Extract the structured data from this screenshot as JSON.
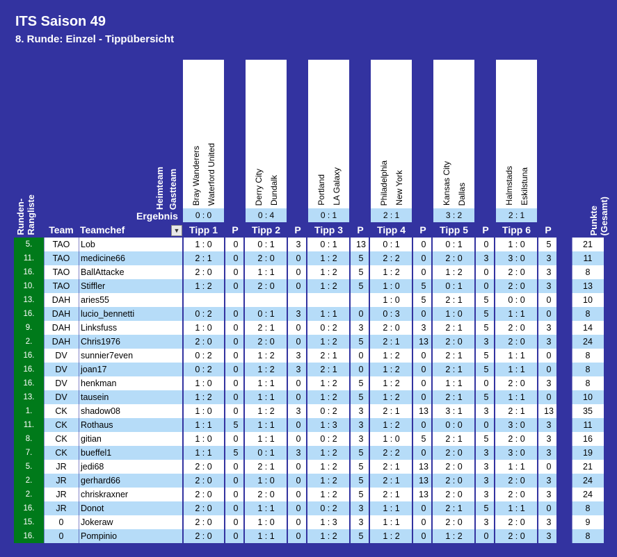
{
  "title": "ITS Saison 49",
  "subtitle": "8. Runde: Einzel - Tippübersicht",
  "labels": {
    "heimteam": "Heimteam",
    "gastteam": "Gastteam",
    "ergebnis": "Ergebnis",
    "rangliste": "Runden-\nRangliste",
    "team": "Team",
    "teamchef": "Teamchef",
    "p": "P",
    "punkte": "Punkte\n(Gesamt)",
    "filter_icon": "▼"
  },
  "matches": [
    {
      "home": "Bray Wanderers",
      "away": "Waterford United",
      "result": "0 : 0",
      "tipp_label": "Tipp 1"
    },
    {
      "home": "Derry City",
      "away": "Dundalk",
      "result": "0 : 4",
      "tipp_label": "Tipp 2"
    },
    {
      "home": "Portland",
      "away": "LA Galaxy",
      "result": "0 : 1",
      "tipp_label": "Tipp 3"
    },
    {
      "home": "Philadelphia",
      "away": "New York",
      "result": "2 : 1",
      "tipp_label": "Tipp 4"
    },
    {
      "home": "Kansas City",
      "away": "Dallas",
      "result": "3 : 2",
      "tipp_label": "Tipp 5"
    },
    {
      "home": "Halmstads",
      "away": "Eskilstuna",
      "result": "2 : 1",
      "tipp_label": "Tipp 6"
    }
  ],
  "colors": {
    "background": "#3333A0",
    "row_white": "#FFFFFF",
    "row_blue": "#B6DCF8",
    "rank_green": "#007A1A",
    "result_blue": "#B6DCF8"
  },
  "rows": [
    {
      "rank": "5.",
      "team": "TAO",
      "chef": "Lob",
      "tipps": [
        [
          "1 : 0",
          "0"
        ],
        [
          "0 : 1",
          "3"
        ],
        [
          "0 : 1",
          "13"
        ],
        [
          "0 : 1",
          "0"
        ],
        [
          "0 : 1",
          "0"
        ],
        [
          "1 : 0",
          "5"
        ]
      ],
      "total": "21"
    },
    {
      "rank": "11.",
      "team": "TAO",
      "chef": "medicine66",
      "tipps": [
        [
          "2 : 1",
          "0"
        ],
        [
          "2 : 0",
          "0"
        ],
        [
          "1 : 2",
          "5"
        ],
        [
          "2 : 2",
          "0"
        ],
        [
          "2 : 0",
          "3"
        ],
        [
          "3 : 0",
          "3"
        ]
      ],
      "total": "11"
    },
    {
      "rank": "16.",
      "team": "TAO",
      "chef": "BallAttacke",
      "tipps": [
        [
          "2 : 0",
          "0"
        ],
        [
          "1 : 1",
          "0"
        ],
        [
          "1 : 2",
          "5"
        ],
        [
          "1 : 2",
          "0"
        ],
        [
          "1 : 2",
          "0"
        ],
        [
          "2 : 0",
          "3"
        ]
      ],
      "total": "8"
    },
    {
      "rank": "10.",
      "team": "TAO",
      "chef": "Stiffler",
      "tipps": [
        [
          "1 : 2",
          "0"
        ],
        [
          "2 : 0",
          "0"
        ],
        [
          "1 : 2",
          "5"
        ],
        [
          "1 : 0",
          "5"
        ],
        [
          "0 : 1",
          "0"
        ],
        [
          "2 : 0",
          "3"
        ]
      ],
      "total": "13"
    },
    {
      "rank": "13.",
      "team": "DAH",
      "chef": "aries55",
      "tipps": [
        [
          "",
          ""
        ],
        [
          "",
          ""
        ],
        [
          "",
          ""
        ],
        [
          "1 : 0",
          "5"
        ],
        [
          "2 : 1",
          "5"
        ],
        [
          "0 : 0",
          "0"
        ]
      ],
      "total": "10"
    },
    {
      "rank": "16.",
      "team": "DAH",
      "chef": "lucio_bennetti",
      "tipps": [
        [
          "0 : 2",
          "0"
        ],
        [
          "0 : 1",
          "3"
        ],
        [
          "1 : 1",
          "0"
        ],
        [
          "0 : 3",
          "0"
        ],
        [
          "1 : 0",
          "5"
        ],
        [
          "1 : 1",
          "0"
        ]
      ],
      "total": "8"
    },
    {
      "rank": "9.",
      "team": "DAH",
      "chef": "Linksfuss",
      "tipps": [
        [
          "1 : 0",
          "0"
        ],
        [
          "2 : 1",
          "0"
        ],
        [
          "0 : 2",
          "3"
        ],
        [
          "2 : 0",
          "3"
        ],
        [
          "2 : 1",
          "5"
        ],
        [
          "2 : 0",
          "3"
        ]
      ],
      "total": "14"
    },
    {
      "rank": "2.",
      "team": "DAH",
      "chef": "Chris1976",
      "tipps": [
        [
          "2 : 0",
          "0"
        ],
        [
          "2 : 0",
          "0"
        ],
        [
          "1 : 2",
          "5"
        ],
        [
          "2 : 1",
          "13"
        ],
        [
          "2 : 0",
          "3"
        ],
        [
          "2 : 0",
          "3"
        ]
      ],
      "total": "24"
    },
    {
      "rank": "16.",
      "team": "DV",
      "chef": "sunnier7even",
      "tipps": [
        [
          "0 : 2",
          "0"
        ],
        [
          "1 : 2",
          "3"
        ],
        [
          "2 : 1",
          "0"
        ],
        [
          "1 : 2",
          "0"
        ],
        [
          "2 : 1",
          "5"
        ],
        [
          "1 : 1",
          "0"
        ]
      ],
      "total": "8"
    },
    {
      "rank": "16.",
      "team": "DV",
      "chef": "joan17",
      "tipps": [
        [
          "0 : 2",
          "0"
        ],
        [
          "1 : 2",
          "3"
        ],
        [
          "2 : 1",
          "0"
        ],
        [
          "1 : 2",
          "0"
        ],
        [
          "2 : 1",
          "5"
        ],
        [
          "1 : 1",
          "0"
        ]
      ],
      "total": "8"
    },
    {
      "rank": "16.",
      "team": "DV",
      "chef": "henkman",
      "tipps": [
        [
          "1 : 0",
          "0"
        ],
        [
          "1 : 1",
          "0"
        ],
        [
          "1 : 2",
          "5"
        ],
        [
          "1 : 2",
          "0"
        ],
        [
          "1 : 1",
          "0"
        ],
        [
          "2 : 0",
          "3"
        ]
      ],
      "total": "8"
    },
    {
      "rank": "13.",
      "team": "DV",
      "chef": "tausein",
      "tipps": [
        [
          "1 : 2",
          "0"
        ],
        [
          "1 : 1",
          "0"
        ],
        [
          "1 : 2",
          "5"
        ],
        [
          "1 : 2",
          "0"
        ],
        [
          "2 : 1",
          "5"
        ],
        [
          "1 : 1",
          "0"
        ]
      ],
      "total": "10"
    },
    {
      "rank": "1.",
      "team": "CK",
      "chef": "shadow08",
      "tipps": [
        [
          "1 : 0",
          "0"
        ],
        [
          "1 : 2",
          "3"
        ],
        [
          "0 : 2",
          "3"
        ],
        [
          "2 : 1",
          "13"
        ],
        [
          "3 : 1",
          "3"
        ],
        [
          "2 : 1",
          "13"
        ]
      ],
      "total": "35"
    },
    {
      "rank": "11.",
      "team": "CK",
      "chef": "Rothaus",
      "tipps": [
        [
          "1 : 1",
          "5"
        ],
        [
          "1 : 1",
          "0"
        ],
        [
          "1 : 3",
          "3"
        ],
        [
          "1 : 2",
          "0"
        ],
        [
          "0 : 0",
          "0"
        ],
        [
          "3 : 0",
          "3"
        ]
      ],
      "total": "11"
    },
    {
      "rank": "8.",
      "team": "CK",
      "chef": "gitian",
      "tipps": [
        [
          "1 : 0",
          "0"
        ],
        [
          "1 : 1",
          "0"
        ],
        [
          "0 : 2",
          "3"
        ],
        [
          "1 : 0",
          "5"
        ],
        [
          "2 : 1",
          "5"
        ],
        [
          "2 : 0",
          "3"
        ]
      ],
      "total": "16"
    },
    {
      "rank": "7.",
      "team": "CK",
      "chef": "bueffel1",
      "tipps": [
        [
          "1 : 1",
          "5"
        ],
        [
          "0 : 1",
          "3"
        ],
        [
          "1 : 2",
          "5"
        ],
        [
          "2 : 2",
          "0"
        ],
        [
          "2 : 0",
          "3"
        ],
        [
          "3 : 0",
          "3"
        ]
      ],
      "total": "19"
    },
    {
      "rank": "5.",
      "team": "JR",
      "chef": "jedi68",
      "tipps": [
        [
          "2 : 0",
          "0"
        ],
        [
          "2 : 1",
          "0"
        ],
        [
          "1 : 2",
          "5"
        ],
        [
          "2 : 1",
          "13"
        ],
        [
          "2 : 0",
          "3"
        ],
        [
          "1 : 1",
          "0"
        ]
      ],
      "total": "21"
    },
    {
      "rank": "2.",
      "team": "JR",
      "chef": "gerhard66",
      "tipps": [
        [
          "2 : 0",
          "0"
        ],
        [
          "1 : 0",
          "0"
        ],
        [
          "1 : 2",
          "5"
        ],
        [
          "2 : 1",
          "13"
        ],
        [
          "2 : 0",
          "3"
        ],
        [
          "2 : 0",
          "3"
        ]
      ],
      "total": "24"
    },
    {
      "rank": "2.",
      "team": "JR",
      "chef": "chriskraxner",
      "tipps": [
        [
          "2 : 0",
          "0"
        ],
        [
          "2 : 0",
          "0"
        ],
        [
          "1 : 2",
          "5"
        ],
        [
          "2 : 1",
          "13"
        ],
        [
          "2 : 0",
          "3"
        ],
        [
          "2 : 0",
          "3"
        ]
      ],
      "total": "24"
    },
    {
      "rank": "16.",
      "team": "JR",
      "chef": "Donot",
      "tipps": [
        [
          "2 : 0",
          "0"
        ],
        [
          "1 : 1",
          "0"
        ],
        [
          "0 : 2",
          "3"
        ],
        [
          "1 : 1",
          "0"
        ],
        [
          "2 : 1",
          "5"
        ],
        [
          "1 : 1",
          "0"
        ]
      ],
      "total": "8"
    },
    {
      "rank": "15.",
      "team": "0",
      "chef": "Jokeraw",
      "tipps": [
        [
          "2 : 0",
          "0"
        ],
        [
          "1 : 0",
          "0"
        ],
        [
          "1 : 3",
          "3"
        ],
        [
          "1 : 1",
          "0"
        ],
        [
          "2 : 0",
          "3"
        ],
        [
          "2 : 0",
          "3"
        ]
      ],
      "total": "9"
    },
    {
      "rank": "16.",
      "team": "0",
      "chef": "Pompinio",
      "tipps": [
        [
          "2 : 0",
          "0"
        ],
        [
          "1 : 1",
          "0"
        ],
        [
          "1 : 2",
          "5"
        ],
        [
          "1 : 2",
          "0"
        ],
        [
          "1 : 2",
          "0"
        ],
        [
          "2 : 0",
          "3"
        ]
      ],
      "total": "8"
    }
  ]
}
